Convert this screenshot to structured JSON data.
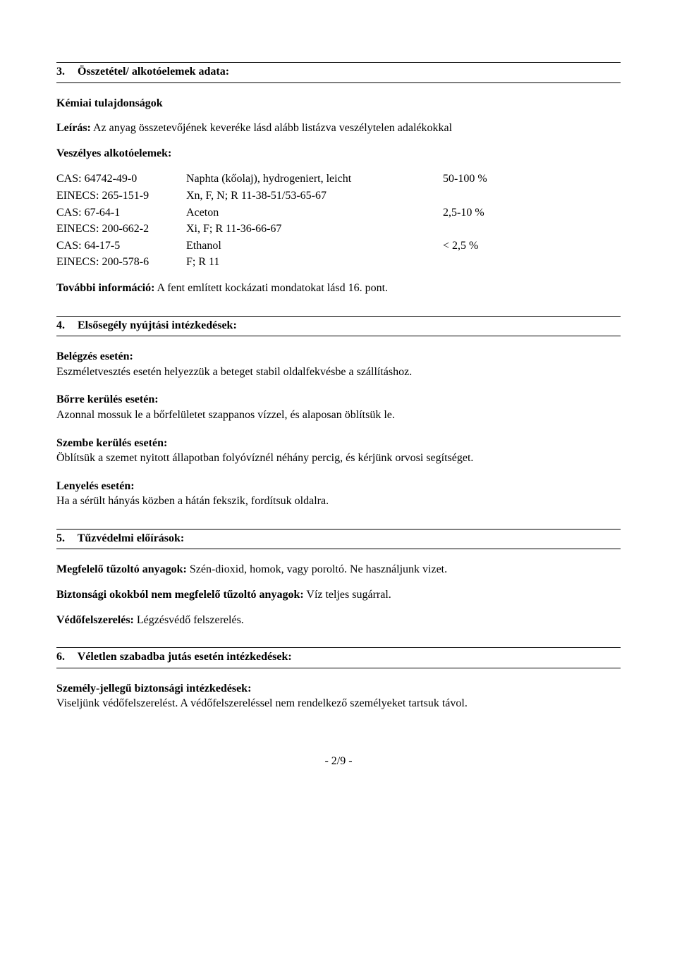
{
  "section3": {
    "num": "3.",
    "title": "Összetétel/ alkotóelemek adata:",
    "subtitle": "Kémiai tulajdonságok",
    "leiras_label": "Leírás:",
    "leiras_text": " Az anyag összetevőjének keveréke lásd alább listázva veszélytelen adalékokkal",
    "hazard_label": "Veszélyes alkotóelemek:",
    "rows": [
      {
        "c1": "CAS: 64742-49-0",
        "c2": "Naphta (kőolaj), hydrogeniert, leicht",
        "c3": "50-100 %"
      },
      {
        "c1": "EINECS: 265-151-9",
        "c2": "Xn, F, N; R 11-38-51/53-65-67",
        "c3": ""
      },
      {
        "c1": "CAS: 67-64-1",
        "c2": "Aceton",
        "c3": "2,5-10 %"
      },
      {
        "c1": "EINECS: 200-662-2",
        "c2": "Xi, F; R 11-36-66-67",
        "c3": ""
      },
      {
        "c1": "CAS: 64-17-5",
        "c2": "Ethanol",
        "c3": "< 2,5 %"
      },
      {
        "c1": "EINECS: 200-578-6",
        "c2": "F; R 11",
        "c3": ""
      }
    ],
    "more_label": "További információ:",
    "more_text": " A fent említett kockázati mondatokat lásd 16. pont."
  },
  "section4": {
    "num": "4.",
    "title": "Elsősegély nyújtási intézkedések:",
    "inhale_label": "Belégzés esetén:",
    "inhale_text": "Eszméletvesztés esetén helyezzük a beteget stabil oldalfekvésbe a szállításhoz.",
    "skin_label": "Bőrre kerülés esetén:",
    "skin_text": "Azonnal mossuk le a bőrfelületet szappanos vízzel, és alaposan öblítsük le.",
    "eye_label": "Szembe kerülés esetén:",
    "eye_text": "Öblítsük a szemet nyitott állapotban folyóvíznél néhány percig, és kérjünk orvosi segítséget.",
    "ingest_label": "Lenyelés esetén:",
    "ingest_text": "Ha a sérült hányás közben a hátán fekszik, fordítsuk oldalra."
  },
  "section5": {
    "num": "5.",
    "title": "Tűzvédelmi előírások:",
    "suitable_label": "Megfelelő tűzoltó anyagok:",
    "suitable_text": " Szén-dioxid, homok, vagy poroltó. Ne használjunk vizet.",
    "unsuitable_label": "Biztonsági okokból nem megfelelő tűzoltó anyagok:",
    "unsuitable_text": " Víz teljes sugárral.",
    "protect_label": "Védőfelszerelés:",
    "protect_text": " Légzésvédő felszerelés."
  },
  "section6": {
    "num": "6.",
    "title": "Véletlen szabadba jutás esetén intézkedések:",
    "personal_label": "Személy-jellegű biztonsági intézkedések:",
    "personal_text": "Viseljünk védőfelszerelést. A védőfelszereléssel nem rendelkező személyeket tartsuk távol."
  },
  "footer": "- 2/9 -"
}
